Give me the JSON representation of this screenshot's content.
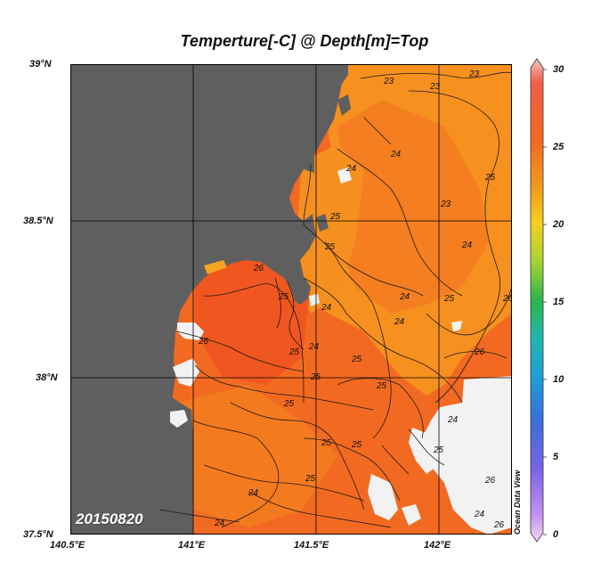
{
  "title": "Temperture[-C] @ Depth[m]=Top",
  "date_stamp": "20150820",
  "watermark": "Ocean Data View",
  "lat_ticks": [
    "39°N",
    "38.5°N",
    "38°N",
    "37.5°N"
  ],
  "lon_ticks": [
    "140.5°E",
    "141°E",
    "141.5°E",
    "142°E"
  ],
  "colorbar": {
    "ticks": [
      "30",
      "25",
      "20",
      "15",
      "10",
      "5",
      "0"
    ],
    "range": [
      0,
      30
    ]
  },
  "colors": {
    "land": "#5f5f5f",
    "no_data": "#f2f2f2",
    "sea_warm": "#f26522",
    "sea_mid": "#f47a1f",
    "sea_cool": "#f6951e",
    "grid": "#000000"
  },
  "contour_labels": [
    "23",
    "23",
    "23",
    "24",
    "24",
    "25",
    "23",
    "25",
    "24",
    "26",
    "25",
    "24",
    "25",
    "24",
    "24",
    "26",
    "26",
    "25",
    "25",
    "24",
    "25",
    "25",
    "25",
    "26",
    "25",
    "24",
    "25",
    "25",
    "25",
    "24",
    "24",
    "25",
    "24",
    "26",
    "26"
  ]
}
